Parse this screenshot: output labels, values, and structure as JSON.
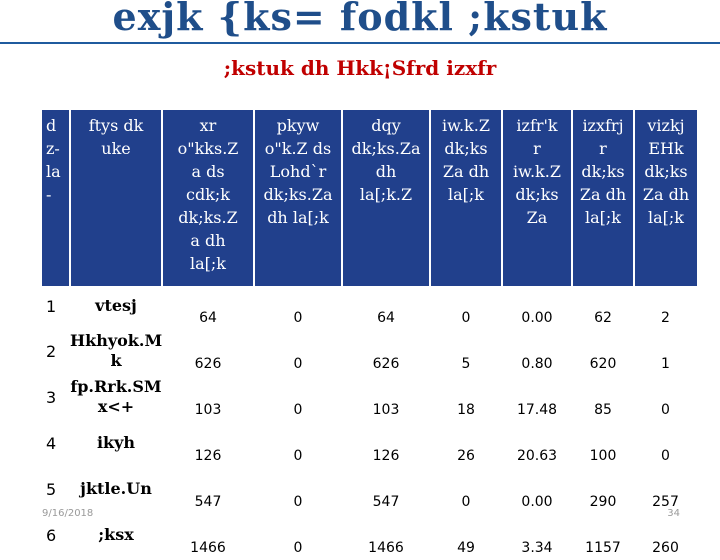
{
  "title": "exjk {ks= fodkl ;kstuk",
  "subtitle": ";kstuk dh Hkk¡Sfrd izxfr",
  "footer": {
    "date": "9/16/2018",
    "page": "34"
  },
  "table": {
    "headers": [
      "d\nz-\nla\n-",
      "ftys dk\nuke",
      "xr\no\"kks.Z\na ds\ncdk;k\ndk;ks.Z\na dh\nla[;k",
      "pkyw\no\"k.Z ds\nLohd`r\ndk;ks.Za\ndh la[;k",
      "dqy\ndk;ks.Za\ndh\nla[;k.Z",
      "iw.k.Z\ndk;ks\nZa dh\nla[;k",
      "izfr'k\nr\niw.k.Z\ndk;ks\nZa",
      "izxfrj\nr\ndk;ks\nZa dh\nla[;k",
      "vizkj\nEHk\ndk;ks\nZa dh\nla[;k"
    ],
    "rows": [
      {
        "sno": "1",
        "name": "vtesj",
        "values": [
          "64",
          "0",
          "64",
          "0",
          "0.00",
          "62",
          "2"
        ]
      },
      {
        "sno": "2",
        "name": "Hkhyok.M\nk",
        "values": [
          "626",
          "0",
          "626",
          "5",
          "0.80",
          "620",
          "1"
        ]
      },
      {
        "sno": "3",
        "name": "fp.Rrk.SM\nx<+",
        "values": [
          "103",
          "0",
          "103",
          "18",
          "17.48",
          "85",
          "0"
        ]
      },
      {
        "sno": "4",
        "name": "ikyh",
        "values": [
          "126",
          "0",
          "126",
          "26",
          "20.63",
          "100",
          "0"
        ]
      },
      {
        "sno": "5",
        "name": "jktle.Un",
        "values": [
          "547",
          "0",
          "547",
          "0",
          "0.00",
          "290",
          "257"
        ]
      },
      {
        "sno": "6",
        "name": ";ksx",
        "values": [
          "1466",
          "0",
          "1466",
          "49",
          "3.34",
          "1157",
          "260"
        ]
      }
    ]
  }
}
